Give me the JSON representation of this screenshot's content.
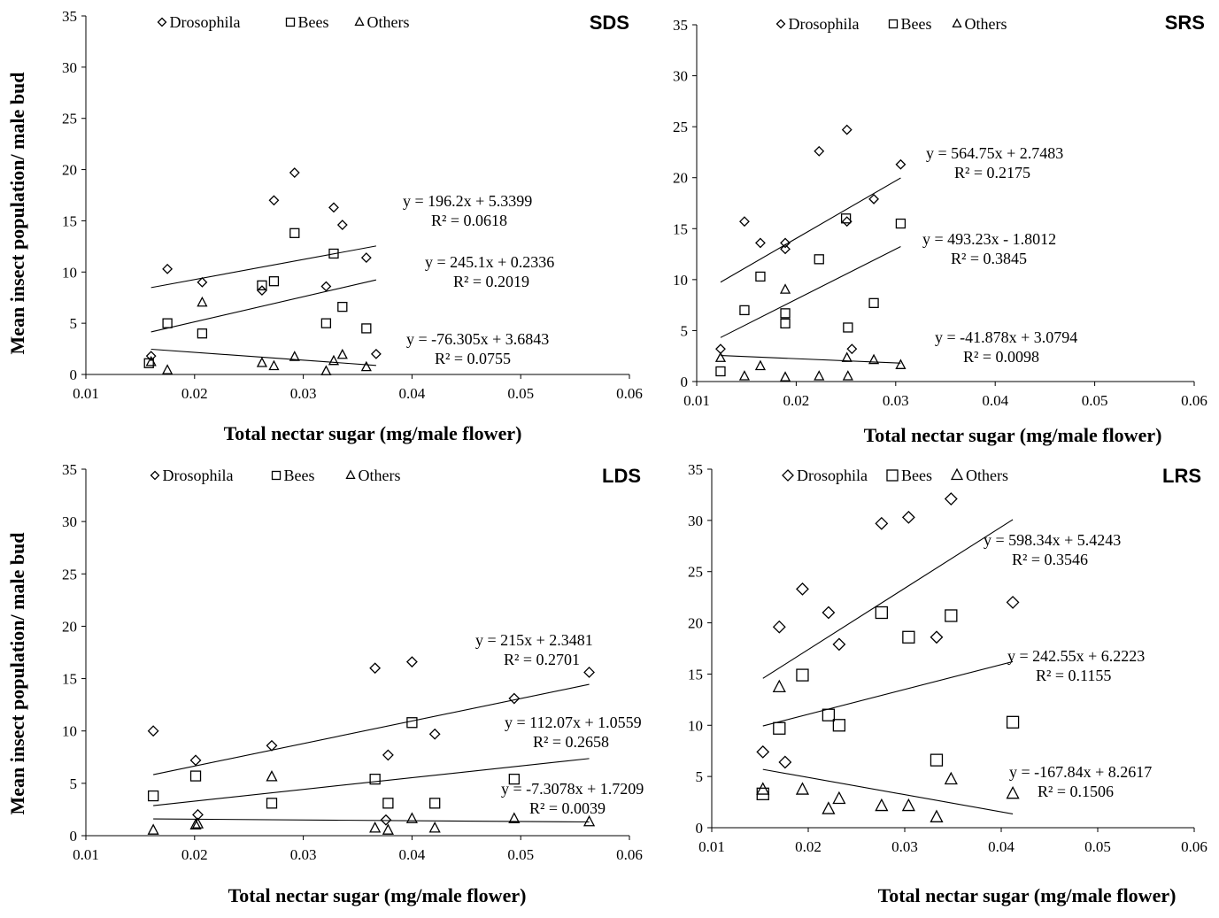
{
  "chart_data": [
    {
      "type": "scatter",
      "title": "SDS",
      "xlabel": "Total nectar sugar (mg/male  flower)",
      "ylabel": "Mean insect population/  male bud",
      "xlim": [
        0.01,
        0.06
      ],
      "ylim": [
        0,
        35
      ],
      "x_ticks": [
        "0.01",
        "0.02",
        "0.03",
        "0.04",
        "0.05",
        "0.06"
      ],
      "y_ticks": [
        "0",
        "5",
        "10",
        "15",
        "20",
        "25",
        "30",
        "35"
      ],
      "legend": [
        "Drosophila",
        "Bees",
        "Others"
      ],
      "legend_position": "top",
      "series": [
        {
          "name": "Drosophila",
          "marker": "diamond",
          "x": [
            0.016,
            0.0175,
            0.0207,
            0.0262,
            0.0273,
            0.0292,
            0.0321,
            0.0328,
            0.0336,
            0.0358,
            0.0367
          ],
          "y": [
            1.8,
            10.3,
            9.0,
            8.2,
            17.0,
            19.7,
            8.6,
            16.3,
            14.6,
            11.4,
            2.0
          ],
          "trend": {
            "slope": 196.2,
            "intercept": 5.3399,
            "x_range": [
              0.016,
              0.0367
            ],
            "equation": "y = 196.2x + 5.3399",
            "r2": "R² = 0.0618"
          }
        },
        {
          "name": "Bees",
          "marker": "square",
          "x": [
            0.0158,
            0.0175,
            0.0207,
            0.0262,
            0.0273,
            0.0292,
            0.0321,
            0.0328,
            0.0336,
            0.0358
          ],
          "y": [
            1.1,
            5.0,
            4.0,
            8.7,
            9.1,
            13.8,
            5.0,
            11.8,
            6.6,
            4.5
          ],
          "trend": {
            "slope": 245.1,
            "intercept": 0.2336,
            "x_range": [
              0.016,
              0.0367
            ],
            "equation": "y = 245.1x + 0.2336",
            "r2": "R² = 0.2019"
          }
        },
        {
          "name": "Others",
          "marker": "triangle",
          "x": [
            0.016,
            0.0175,
            0.0207,
            0.0262,
            0.0273,
            0.0292,
            0.0321,
            0.0328,
            0.0336,
            0.0358
          ],
          "y": [
            1.2,
            0.4,
            7.0,
            1.1,
            0.8,
            1.7,
            0.3,
            1.3,
            1.9,
            0.7
          ],
          "trend": {
            "slope": -76.305,
            "intercept": 3.6843,
            "x_range": [
              0.016,
              0.0367
            ],
            "equation": "y = -76.305x + 3.6843",
            "r2": "R² = 0.0755"
          }
        }
      ]
    },
    {
      "type": "scatter",
      "title": "SRS",
      "xlabel": "Total nectar sugar (mg/male  flower)",
      "ylabel": "",
      "xlim": [
        0.01,
        0.06
      ],
      "ylim": [
        0,
        35
      ],
      "x_ticks": [
        "0.01",
        "0.02",
        "0.03",
        "0.04",
        "0.05",
        "0.06"
      ],
      "y_ticks": [
        "0",
        "5",
        "10",
        "15",
        "20",
        "25",
        "30",
        "35"
      ],
      "legend": [
        "Drosophila",
        "Bees",
        "Others"
      ],
      "legend_position": "top",
      "series": [
        {
          "name": "Drosophila",
          "marker": "diamond",
          "x": [
            0.0124,
            0.0148,
            0.0164,
            0.0189,
            0.0189,
            0.0223,
            0.0251,
            0.0251,
            0.0256,
            0.0278,
            0.0305
          ],
          "y": [
            3.2,
            15.7,
            13.6,
            13.6,
            13.0,
            22.6,
            24.7,
            15.7,
            3.2,
            17.9,
            21.3
          ],
          "trend": {
            "slope": 564.75,
            "intercept": 2.7483,
            "x_range": [
              0.0124,
              0.0305
            ],
            "equation": "y = 564.75x + 2.7483",
            "r2": "R² = 0.2175"
          }
        },
        {
          "name": "Bees",
          "marker": "square",
          "x": [
            0.0124,
            0.0148,
            0.0164,
            0.0189,
            0.0189,
            0.0223,
            0.025,
            0.0252,
            0.0278,
            0.0305
          ],
          "y": [
            1.0,
            7.0,
            10.3,
            6.7,
            5.7,
            12.0,
            16.0,
            5.3,
            7.7,
            15.5
          ],
          "trend": {
            "slope": 493.23,
            "intercept": -1.8012,
            "x_range": [
              0.0124,
              0.0305
            ],
            "equation": "y = 493.23x - 1.8012",
            "r2": "R² = 0.3845"
          }
        },
        {
          "name": "Others",
          "marker": "triangle",
          "x": [
            0.0124,
            0.0148,
            0.0164,
            0.0189,
            0.0189,
            0.0223,
            0.0251,
            0.0252,
            0.0278,
            0.0305
          ],
          "y": [
            2.3,
            0.5,
            1.5,
            9.0,
            0.4,
            0.5,
            2.3,
            0.5,
            2.1,
            1.6
          ],
          "trend": {
            "slope": -41.878,
            "intercept": 3.0794,
            "x_range": [
              0.0124,
              0.0305
            ],
            "equation": "y = -41.878x + 3.0794",
            "r2": "R² = 0.0098"
          }
        }
      ]
    },
    {
      "type": "scatter",
      "title": "LDS",
      "xlabel": "Total nectar sugar (mg/male  flower)",
      "ylabel": "Mean insect population/  male bud",
      "xlim": [
        0.01,
        0.06
      ],
      "ylim": [
        0,
        35
      ],
      "x_ticks": [
        "0.01",
        "0.02",
        "0.03",
        "0.04",
        "0.05",
        "0.06"
      ],
      "y_ticks": [
        "0",
        "5",
        "10",
        "15",
        "20",
        "25",
        "30",
        "35"
      ],
      "legend": [
        "Drosophila",
        "Bees",
        "Others"
      ],
      "legend_position": "top",
      "series": [
        {
          "name": "Drosophila",
          "marker": "diamond",
          "x": [
            0.0162,
            0.0201,
            0.0203,
            0.0271,
            0.0366,
            0.0376,
            0.0378,
            0.04,
            0.0421,
            0.0494,
            0.0563
          ],
          "y": [
            10.0,
            7.2,
            2.0,
            8.6,
            16.0,
            1.5,
            7.7,
            16.6,
            9.7,
            13.1,
            15.6
          ],
          "trend": {
            "slope": 215,
            "intercept": 2.3481,
            "x_range": [
              0.0162,
              0.0563
            ],
            "equation": "y = 215x + 2.3481",
            "r2": "R² = 0.2701"
          }
        },
        {
          "name": "Bees",
          "marker": "square",
          "x": [
            0.0162,
            0.0201,
            0.0271,
            0.0366,
            0.0378,
            0.04,
            0.0421,
            0.0494
          ],
          "y": [
            3.8,
            5.7,
            3.1,
            5.4,
            3.1,
            10.8,
            3.1,
            5.4
          ],
          "trend": {
            "slope": 112.07,
            "intercept": 1.0559,
            "x_range": [
              0.0162,
              0.0563
            ],
            "equation": "y = 112.07x + 1.0559",
            "r2": "R² = 0.2658"
          }
        },
        {
          "name": "Others",
          "marker": "triangle",
          "x": [
            0.0162,
            0.0201,
            0.0203,
            0.0271,
            0.0366,
            0.0378,
            0.04,
            0.0421,
            0.0494,
            0.0563
          ],
          "y": [
            0.5,
            1.0,
            1.1,
            5.6,
            0.7,
            0.5,
            1.6,
            0.7,
            1.6,
            1.3
          ],
          "trend": {
            "slope": -7.3078,
            "intercept": 1.7209,
            "x_range": [
              0.0162,
              0.0563
            ],
            "equation": "y = -7.3078x + 1.7209",
            "r2": "R² = 0.0039"
          }
        }
      ]
    },
    {
      "type": "scatter",
      "title": "LRS",
      "xlabel": "Total nectar sugar (mg/male  flower)",
      "ylabel": "",
      "xlim": [
        0.01,
        0.06
      ],
      "ylim": [
        0,
        35
      ],
      "x_ticks": [
        "0.01",
        "0.02",
        "0.03",
        "0.04",
        "0.05",
        "0.06"
      ],
      "y_ticks": [
        "0",
        "5",
        "10",
        "15",
        "20",
        "25",
        "30",
        "35"
      ],
      "legend": [
        "Drosophila",
        "Bees",
        "Others"
      ],
      "legend_position": "top",
      "series": [
        {
          "name": "Drosophila",
          "marker": "diamond",
          "x": [
            0.0153,
            0.017,
            0.0176,
            0.0194,
            0.0221,
            0.0232,
            0.0276,
            0.0304,
            0.0333,
            0.0348,
            0.0412
          ],
          "y": [
            7.4,
            19.6,
            6.4,
            23.3,
            21.0,
            17.9,
            29.7,
            30.3,
            18.6,
            32.1,
            22.0
          ],
          "trend": {
            "slope": 598.34,
            "intercept": 5.4243,
            "x_range": [
              0.0153,
              0.0412
            ],
            "equation": "y = 598.34x + 5.4243",
            "r2": "R² = 0.3546"
          }
        },
        {
          "name": "Bees",
          "marker": "square",
          "x": [
            0.0153,
            0.017,
            0.0194,
            0.0221,
            0.0232,
            0.0276,
            0.0304,
            0.0333,
            0.0348,
            0.0412
          ],
          "y": [
            3.3,
            9.7,
            14.9,
            11.0,
            10.0,
            21.0,
            18.6,
            6.6,
            20.7,
            10.3
          ],
          "trend": {
            "slope": 242.55,
            "intercept": 6.2223,
            "x_range": [
              0.0153,
              0.0412
            ],
            "equation": "y = 242.55x + 6.2223",
            "r2": "R² = 0.1155"
          }
        },
        {
          "name": "Others",
          "marker": "triangle",
          "x": [
            0.0153,
            0.017,
            0.0194,
            0.0221,
            0.0232,
            0.0276,
            0.0304,
            0.0333,
            0.0348,
            0.0412
          ],
          "y": [
            3.7,
            13.7,
            3.7,
            1.8,
            2.8,
            2.1,
            2.1,
            1.0,
            4.7,
            3.3
          ],
          "trend": {
            "slope": -167.84,
            "intercept": 8.2617,
            "x_range": [
              0.0153,
              0.0412
            ],
            "equation": "y = -167.84x + 8.2617",
            "r2": "R² = 0.1506"
          }
        }
      ]
    }
  ]
}
